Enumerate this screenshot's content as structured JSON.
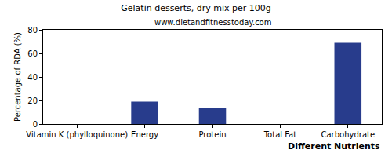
{
  "chart_data": {
    "type": "bar",
    "title": "Gelatin desserts, dry mix per 100g",
    "subtitle": "www.dietandfitnesstoday.com",
    "x_label": "Different Nutrients",
    "y_label": "Percentage of RDA (%)",
    "categories": [
      "Vitamin K (phylloquinone)",
      "Energy",
      "Protein",
      "Total Fat",
      "Carbohydrate"
    ],
    "values": [
      0,
      19,
      13.5,
      0,
      69
    ],
    "color": "#283c8c",
    "ylim": [
      0,
      80
    ],
    "yticks": [
      0,
      20,
      40,
      60,
      80
    ],
    "grid": false
  }
}
